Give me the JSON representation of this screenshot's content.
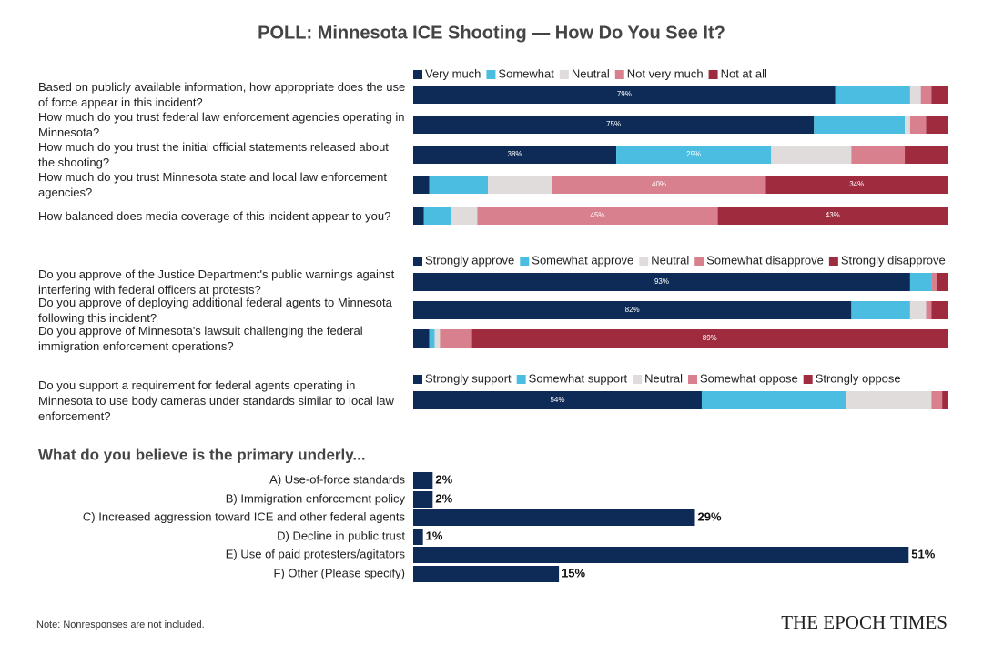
{
  "title": "POLL: Minnesota ICE Shooting — How Do You See It?",
  "chart_data": [
    {
      "type": "bar",
      "orientation": "horizontal",
      "stacked": true,
      "xlim": [
        0,
        100
      ],
      "categories": [
        "Based on publicly available information, how appropriate does the use of force appear in this incident?",
        "How much do you trust federal law enforcement agencies operating in Minnesota?",
        "How much do you trust the initial official statements released about the shooting?",
        "How much do you trust Minnesota state and local law enforcement agencies?",
        "How balanced does media coverage of this incident appear to you?"
      ],
      "series": [
        {
          "name": "Very much",
          "color": "#0d2b56",
          "values": [
            79,
            75,
            38,
            3,
            2
          ],
          "value_labels": [
            "79%",
            "75%",
            "38%",
            null,
            null
          ]
        },
        {
          "name": "Somewhat",
          "color": "#4bbde0",
          "values": [
            14,
            17,
            29,
            11,
            5
          ],
          "value_labels": [
            null,
            null,
            "29%",
            null,
            null
          ]
        },
        {
          "name": "Neutral",
          "color": "#e0dcdc",
          "values": [
            2,
            1,
            15,
            12,
            5
          ]
        },
        {
          "name": "Not very much",
          "color": "#d9808e",
          "values": [
            2,
            3,
            10,
            40,
            45
          ],
          "value_labels": [
            null,
            null,
            null,
            "40%",
            "45%"
          ]
        },
        {
          "name": "Not at all",
          "color": "#9e2c3e",
          "values": [
            3,
            4,
            8,
            34,
            43
          ],
          "value_labels": [
            null,
            null,
            null,
            "34%",
            "43%"
          ]
        }
      ]
    },
    {
      "type": "bar",
      "orientation": "horizontal",
      "stacked": true,
      "xlim": [
        0,
        100
      ],
      "categories": [
        "Do you approve of the Justice Department's public warnings against interfering with federal officers at protests?",
        "Do you approve of deploying additional federal agents to Minnesota following this incident?",
        "Do you approve of Minnesota's lawsuit challenging the federal immigration enforcement operations?"
      ],
      "series": [
        {
          "name": "Strongly approve",
          "color": "#0d2b56",
          "values": [
            93,
            82,
            3
          ],
          "value_labels": [
            "93%",
            "82%",
            null
          ]
        },
        {
          "name": "Somewhat approve",
          "color": "#4bbde0",
          "values": [
            4,
            11,
            1
          ]
        },
        {
          "name": "Neutral",
          "color": "#e0dcdc",
          "values": [
            0,
            3,
            1
          ]
        },
        {
          "name": "Somewhat disapprove",
          "color": "#d9808e",
          "values": [
            1,
            1,
            6
          ]
        },
        {
          "name": "Strongly disapprove",
          "color": "#9e2c3e",
          "values": [
            2,
            3,
            89
          ],
          "value_labels": [
            null,
            null,
            "89%"
          ]
        }
      ]
    },
    {
      "type": "bar",
      "orientation": "horizontal",
      "stacked": true,
      "xlim": [
        0,
        100
      ],
      "categories": [
        "Do you support a requirement for federal agents operating in Minnesota to use body cameras under standards similar to local law enforcement?"
      ],
      "series": [
        {
          "name": "Strongly support",
          "color": "#0d2b56",
          "values": [
            54
          ],
          "value_labels": [
            "54%"
          ]
        },
        {
          "name": "Somewhat support",
          "color": "#4bbde0",
          "values": [
            27
          ]
        },
        {
          "name": "Neutral",
          "color": "#e0dcdc",
          "values": [
            16
          ]
        },
        {
          "name": "Somewhat oppose",
          "color": "#d9808e",
          "values": [
            2
          ]
        },
        {
          "name": "Strongly oppose",
          "color": "#9e2c3e",
          "values": [
            1
          ]
        }
      ]
    },
    {
      "type": "bar",
      "orientation": "horizontal",
      "title": "What do you believe is the primary underly...",
      "xlim": [
        0,
        55
      ],
      "color": "#0d2b56",
      "categories": [
        "A) Use-of-force standards",
        "B) Immigration enforcement policy",
        "C) Increased aggression toward ICE and other federal agents",
        "D) Decline in public trust",
        "E) Use of paid protesters/agitators",
        "F) Other (Please specify)"
      ],
      "values": [
        2,
        2,
        29,
        1,
        51,
        15
      ],
      "value_labels": [
        "2%",
        "2%",
        "29%",
        "1%",
        "51%",
        "15%"
      ]
    }
  ],
  "note": "Note: Nonresponses are not included.",
  "logo": "THE EPOCH TIMES"
}
